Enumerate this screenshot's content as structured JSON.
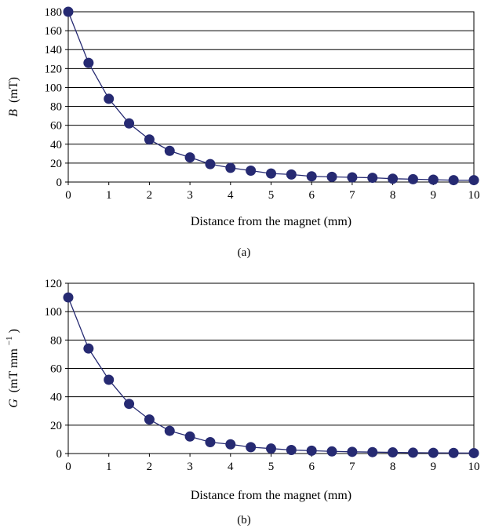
{
  "chart_data": [
    {
      "type": "line",
      "caption": "(a)",
      "xlabel": "Distance from the magnet (mm)",
      "ylabel": {
        "symbol": "B",
        "units": "(mT)"
      },
      "xlim": [
        0,
        10
      ],
      "ylim": [
        0,
        180
      ],
      "xticks": [
        "0",
        "1",
        "2",
        "3",
        "4",
        "5",
        "6",
        "7",
        "8",
        "9",
        "10"
      ],
      "yticks": [
        "0",
        "20",
        "40",
        "60",
        "80",
        "100",
        "120",
        "140",
        "160",
        "180"
      ],
      "grid": "horizontal",
      "series": [
        {
          "color": "#262a72",
          "marker": "circle",
          "x": [
            0,
            0.5,
            1,
            1.5,
            2,
            2.5,
            3,
            3.5,
            4,
            4.5,
            5,
            5.5,
            6,
            6.5,
            7,
            7.5,
            8,
            8.5,
            9,
            9.5,
            10
          ],
          "values": [
            180,
            126,
            88,
            62,
            45,
            33,
            26,
            19,
            15,
            12,
            9,
            8,
            6,
            5.5,
            5,
            4.5,
            3.5,
            3,
            2.5,
            2,
            2
          ]
        }
      ]
    },
    {
      "type": "line",
      "caption": "(b)",
      "xlabel": "Distance from the magnet (mm)",
      "ylabel": {
        "symbol": "G",
        "units_main": "(mT mm",
        "units_sup": "−1",
        "units_close": ")"
      },
      "xlim": [
        0,
        10
      ],
      "ylim": [
        0,
        120
      ],
      "xticks": [
        "0",
        "1",
        "2",
        "3",
        "4",
        "5",
        "6",
        "7",
        "8",
        "9",
        "10"
      ],
      "yticks": [
        "0",
        "20",
        "40",
        "60",
        "80",
        "100",
        "120"
      ],
      "grid": "horizontal",
      "series": [
        {
          "color": "#262a72",
          "marker": "circle",
          "x": [
            0,
            0.5,
            1,
            1.5,
            2,
            2.5,
            3,
            3.5,
            4,
            4.5,
            5,
            5.5,
            6,
            6.5,
            7,
            7.5,
            8,
            8.5,
            9,
            9.5,
            10
          ],
          "values": [
            110,
            74,
            52,
            35,
            24,
            16,
            12,
            8,
            6.5,
            4.5,
            3.5,
            2.5,
            2,
            1.5,
            1.2,
            1,
            0.8,
            0.6,
            0.5,
            0.4,
            0.3
          ]
        }
      ]
    }
  ]
}
